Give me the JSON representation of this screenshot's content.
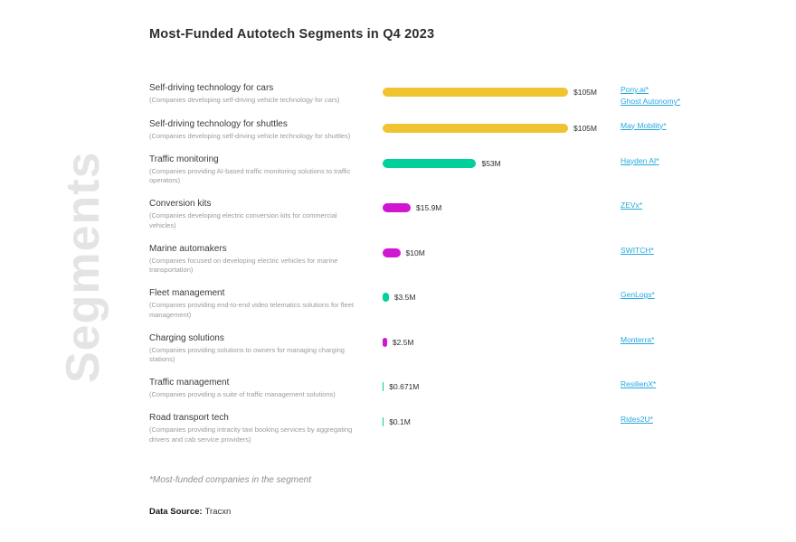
{
  "page": {
    "title": "Most-Funded Autotech Segments in Q4 2023",
    "watermark": "Segments",
    "footnote": "*Most-funded companies in the segment",
    "source_label": "Data Source:",
    "source_value": "Tracxn"
  },
  "colors": {
    "yellow": "#f0c330",
    "green": "#00d09c",
    "magenta": "#d016d0",
    "link": "#25a8e0"
  },
  "chart_data": {
    "type": "bar",
    "orientation": "horizontal",
    "title": "Most-Funded Autotech Segments in Q4 2023",
    "unit": "USD millions",
    "value_range": [
      0,
      105
    ],
    "max_value": 105,
    "rows": [
      {
        "segment": "Self-driving technology for cars",
        "description": "(Companies developing self-driving vehicle technology for cars)",
        "value": 105,
        "value_label": "$105M",
        "color": "yellow",
        "companies": [
          "Pony.ai*",
          "Ghost Autonomy*"
        ]
      },
      {
        "segment": "Self-driving technology for shuttles",
        "description": "(Companies developing self-driving vehicle technology for shuttles)",
        "value": 105,
        "value_label": "$105M",
        "color": "yellow",
        "companies": [
          "May Mobility*"
        ]
      },
      {
        "segment": "Traffic monitoring",
        "description": "(Companies providing AI-based traffic monitoring solutions to traffic operators)",
        "value": 53,
        "value_label": "$53M",
        "color": "green",
        "companies": [
          "Hayden AI*"
        ]
      },
      {
        "segment": "Conversion kits",
        "description": "(Companies developing electric conversion kits for commercial vehicles)",
        "value": 15.9,
        "value_label": "$15.9M",
        "color": "magenta",
        "companies": [
          "ZEVx*"
        ]
      },
      {
        "segment": "Marine automakers",
        "description": "(Companies focused on developing electric vehicles for marine transportation)",
        "value": 10,
        "value_label": "$10M",
        "color": "magenta",
        "companies": [
          "SWITCH*"
        ]
      },
      {
        "segment": "Fleet management",
        "description": "(Companies providing end-to-end video telematics solutions for fleet management)",
        "value": 3.5,
        "value_label": "$3.5M",
        "color": "green",
        "companies": [
          "GenLogs*"
        ]
      },
      {
        "segment": "Charging solutions",
        "description": "(Companies providing solutions to owners for managing charging stations)",
        "value": 2.5,
        "value_label": "$2.5M",
        "color": "magenta",
        "companies": [
          "Monterra*"
        ]
      },
      {
        "segment": "Traffic management",
        "description": "(Companies providing a suite of traffic management solutions)",
        "value": 0.671,
        "value_label": "$0.671M",
        "color": "green",
        "companies": [
          "ResilienX*"
        ]
      },
      {
        "segment": "Road transport tech",
        "description": "(Companies providing intracity taxi booking services by aggregating drivers and cab service providers)",
        "value": 0.1,
        "value_label": "$0.1M",
        "color": "green",
        "companies": [
          "Rides2U*"
        ]
      }
    ]
  }
}
